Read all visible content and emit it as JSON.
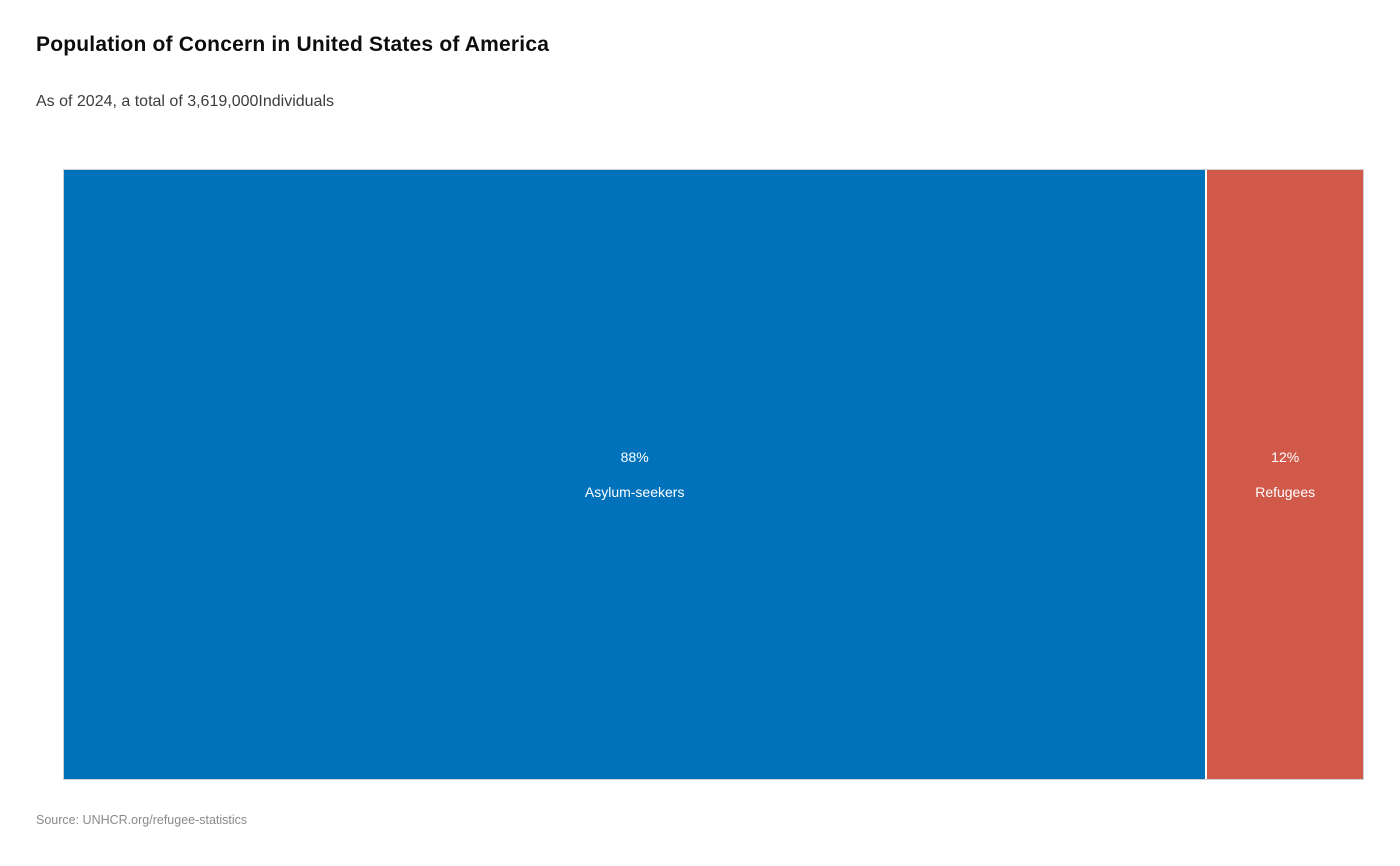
{
  "page": {
    "title": "Population of Concern in United States of America",
    "subtitle": "As of 2024, a total of 3,619,000Individuals",
    "source": "Source: UNHCR.org/refugee-statistics"
  },
  "chart_data": {
    "type": "treemap",
    "title": "Population of Concern in United States of America",
    "subtitle": "As of 2024, a total of 3,619,000Individuals",
    "year": 2024,
    "total_individuals": 3619000,
    "categories": [
      "Asylum-seekers",
      "Refugees"
    ],
    "values_percent": [
      88,
      12
    ],
    "segments": [
      {
        "label": "Asylum-seekers",
        "percent_label": "88%",
        "value_percent": 88,
        "color": "#0072BC",
        "text_color": "#FFFFFF"
      },
      {
        "label": "Refugees",
        "percent_label": "12%",
        "value_percent": 12,
        "color": "#D0594A",
        "text_color": "#FFFFFF"
      }
    ],
    "legend": false,
    "orientation": "horizontal",
    "source": "Source: UNHCR.org/refugee-statistics"
  },
  "colors": {
    "asylum_seekers_blue": "#0072BC",
    "refugees_red": "#D0594A",
    "chart_border": "#CFCFCF",
    "title_text": "#0D0D0D",
    "subtitle_text": "#3D3D3D",
    "source_text": "#8A8A8A"
  }
}
